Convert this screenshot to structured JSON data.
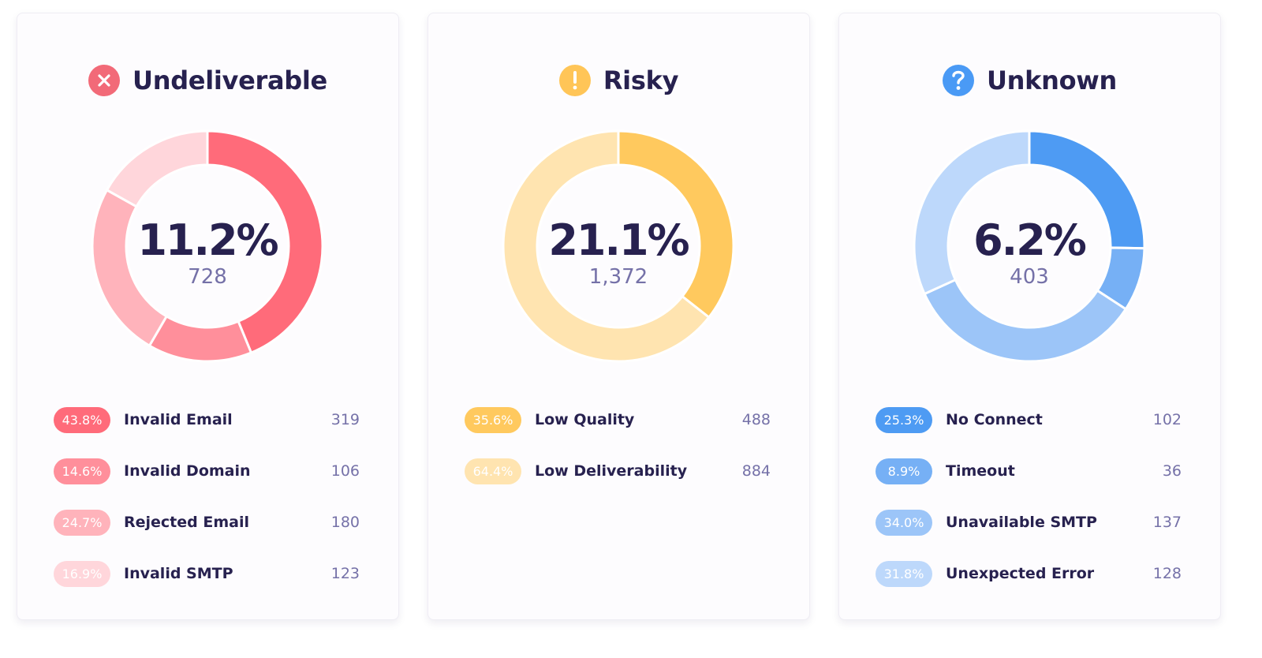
{
  "cards": [
    {
      "title": "Undeliverable",
      "icon": "x-circle-icon",
      "icon_color": "#f26a78",
      "percent": "11.2%",
      "count": "728",
      "items": [
        {
          "pct": "43.8%",
          "label": "Invalid Email",
          "count": "319",
          "value": 43.8,
          "color": "#ff6b7a"
        },
        {
          "pct": "14.6%",
          "label": "Invalid Domain",
          "count": "106",
          "value": 14.6,
          "color": "#ff8f9b"
        },
        {
          "pct": "24.7%",
          "label": "Rejected Email",
          "count": "180",
          "value": 24.7,
          "color": "#ffb3bb"
        },
        {
          "pct": "16.9%",
          "label": "Invalid SMTP",
          "count": "123",
          "value": 16.9,
          "color": "#ffd6db"
        }
      ]
    },
    {
      "title": "Risky",
      "icon": "exclamation-circle-icon",
      "icon_color": "#ffc557",
      "percent": "21.1%",
      "count": "1,372",
      "items": [
        {
          "pct": "35.6%",
          "label": "Low Quality",
          "count": "488",
          "value": 35.6,
          "color": "#ffc95e"
        },
        {
          "pct": "64.4%",
          "label": "Low Deliverability",
          "count": "884",
          "value": 64.4,
          "color": "#ffe4b0"
        }
      ]
    },
    {
      "title": "Unknown",
      "icon": "question-circle-icon",
      "icon_color": "#4a9af5",
      "percent": "6.2%",
      "count": "403",
      "items": [
        {
          "pct": "25.3%",
          "label": "No Connect",
          "count": "102",
          "value": 25.3,
          "color": "#4e9bf3"
        },
        {
          "pct": "8.9%",
          "label": "Timeout",
          "count": "36",
          "value": 8.9,
          "color": "#76b0f5"
        },
        {
          "pct": "34.0%",
          "label": "Unavailable SMTP",
          "count": "137",
          "value": 34.0,
          "color": "#9cc5f8"
        },
        {
          "pct": "31.8%",
          "label": "Unexpected Error",
          "count": "128",
          "value": 31.8,
          "color": "#bdd8fb"
        }
      ]
    }
  ]
}
